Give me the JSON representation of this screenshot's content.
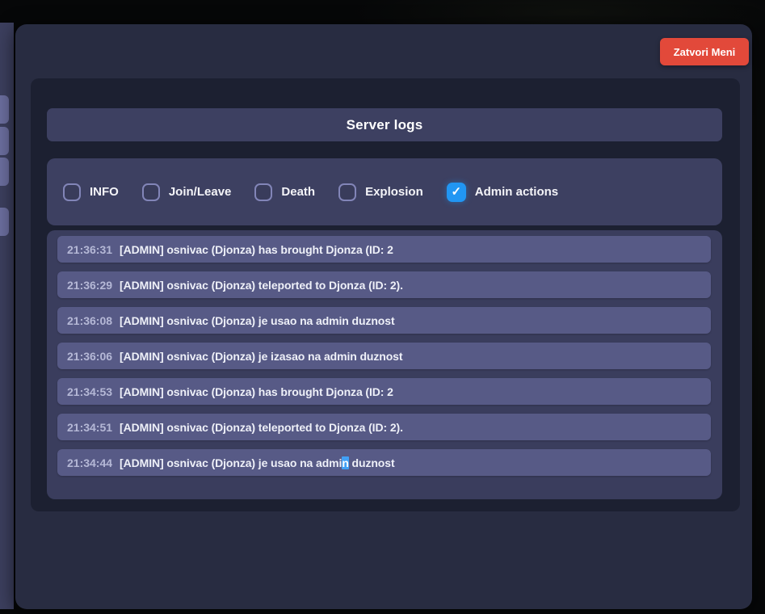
{
  "window": {
    "close_button_label": "Zatvori Meni"
  },
  "server_logs": {
    "title": "Server logs",
    "filters": [
      {
        "label": "INFO",
        "checked": false
      },
      {
        "label": "Join/Leave",
        "checked": false
      },
      {
        "label": "Death",
        "checked": false
      },
      {
        "label": "Explosion",
        "checked": false
      },
      {
        "label": "Admin actions",
        "checked": true
      }
    ],
    "entries": [
      {
        "time": "21:36:31",
        "message": "[ADMIN] osnivac (Djonza) has brought Djonza (ID: 2"
      },
      {
        "time": "21:36:29",
        "message": "[ADMIN] osnivac (Djonza) teleported to Djonza (ID: 2)."
      },
      {
        "time": "21:36:08",
        "message": "[ADMIN] osnivac (Djonza) je usao na admin duznost"
      },
      {
        "time": "21:36:06",
        "message": "[ADMIN] osnivac (Djonza) je izasao na admin duznost"
      },
      {
        "time": "21:34:53",
        "message": "[ADMIN] osnivac (Djonza) has brought Djonza (ID: 2"
      },
      {
        "time": "21:34:51",
        "message": "[ADMIN] osnivac (Djonza) teleported to Djonza (ID: 2)."
      },
      {
        "time": "21:34:44",
        "message_prefix": "[ADMIN] osnivac (Djonza) je usao na admi",
        "message_highlight": "n",
        "message_suffix": " duznost"
      }
    ]
  },
  "icons": {
    "checkmark": "✓"
  },
  "colors": {
    "close_button_red": "#e2493a",
    "checkbox_checked_blue": "#2196f3",
    "text_highlight_blue": "#41a0f5",
    "log_row_purple": "#575a86",
    "section_panel_purple": "#3d4061",
    "inner_panel_dark": "#1c2031",
    "outer_panel_dark": "#282c41"
  }
}
